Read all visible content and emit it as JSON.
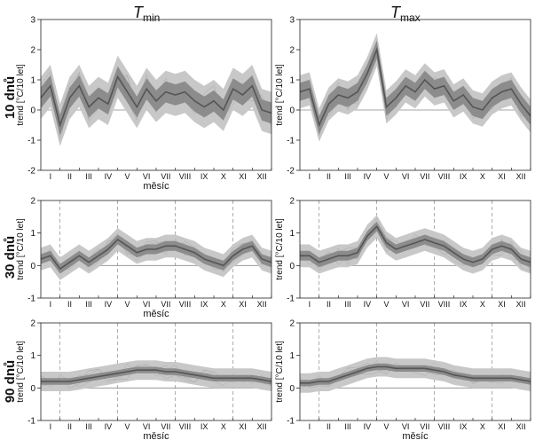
{
  "figure": {
    "col_titles": [
      {
        "main": "T",
        "sub": "min"
      },
      {
        "main": "T",
        "sub": "max"
      }
    ],
    "row_labels": [
      "10 dnů",
      "30 dnů",
      "90 dnů"
    ]
  },
  "colors": {
    "band_outer": "#c8c8c8",
    "band_inner": "#8c8c8c",
    "median": "#555555",
    "thin_lines": "#aaaaaa",
    "zero_line": "#888888"
  },
  "chart_data": [
    {
      "type": "line",
      "panel": "10 dnů / T min",
      "xlabel": "měsíc",
      "ylabel": "trend [°C/10 let]",
      "ylim": [
        -2,
        3
      ],
      "yticks": [
        -2,
        -1,
        0,
        1,
        2,
        3
      ],
      "months": [
        "I",
        "II",
        "III",
        "IV",
        "V",
        "VI",
        "VII",
        "VIII",
        "IX",
        "X",
        "XI",
        "XII"
      ],
      "x": [
        0,
        0.5,
        1,
        1.5,
        2,
        2.5,
        3,
        3.5,
        4,
        4.5,
        5,
        5.5,
        6,
        6.5,
        7,
        7.5,
        8,
        8.5,
        9,
        9.5,
        10,
        10.5,
        11,
        11.5,
        12
      ],
      "median": [
        0.4,
        0.8,
        -0.5,
        0.4,
        0.8,
        0.1,
        0.4,
        0.2,
        1.1,
        0.6,
        0.1,
        0.7,
        0.3,
        0.6,
        0.5,
        0.6,
        0.3,
        0.1,
        0.3,
        0.0,
        0.7,
        0.5,
        0.8,
        0.0,
        -0.1
      ],
      "band_halfwidth": 0.35,
      "outer_halfwidth": 0.7,
      "dashed_months": []
    },
    {
      "type": "line",
      "panel": "10 dnů / T max",
      "xlabel": "",
      "ylabel": "trend [°C/10 let]",
      "ylim": [
        -2,
        3
      ],
      "yticks": [
        -2,
        -1,
        0,
        1,
        2,
        3
      ],
      "months": [
        "I",
        "II",
        "III",
        "IV",
        "V",
        "VI",
        "VII",
        "VIII",
        "IX",
        "X",
        "XI",
        "XII"
      ],
      "x": [
        0,
        0.5,
        1,
        1.5,
        2,
        2.5,
        3,
        3.5,
        4,
        4.5,
        5,
        5.5,
        6,
        6.5,
        7,
        7.5,
        8,
        8.5,
        9,
        9.5,
        10,
        10.5,
        11,
        11.5,
        12
      ],
      "median": [
        0.6,
        0.7,
        -0.5,
        0.2,
        0.5,
        0.4,
        0.6,
        1.2,
        2.0,
        0.1,
        0.4,
        0.8,
        0.6,
        1.0,
        0.7,
        0.8,
        0.3,
        0.5,
        0.1,
        0.0,
        0.4,
        0.6,
        0.7,
        0.2,
        -0.2
      ],
      "band_halfwidth": 0.3,
      "outer_halfwidth": 0.55,
      "dashed_months": []
    },
    {
      "type": "line",
      "panel": "30 dnů / T min",
      "xlabel": "měsíc",
      "ylabel": "trend [°C/10 let]",
      "ylim": [
        -1,
        2
      ],
      "yticks": [
        -1,
        0,
        1,
        2
      ],
      "months": [
        "I",
        "II",
        "III",
        "IV",
        "V",
        "VI",
        "VII",
        "VIII",
        "IX",
        "X",
        "XI",
        "XII"
      ],
      "x": [
        0,
        0.5,
        1,
        1.5,
        2,
        2.5,
        3,
        3.5,
        4,
        4.5,
        5,
        5.5,
        6,
        6.5,
        7,
        7.5,
        8,
        8.5,
        9,
        9.5,
        10,
        10.5,
        11,
        11.5,
        12
      ],
      "median": [
        0.2,
        0.3,
        -0.1,
        0.1,
        0.3,
        0.1,
        0.3,
        0.5,
        0.8,
        0.6,
        0.4,
        0.5,
        0.5,
        0.6,
        0.6,
        0.5,
        0.4,
        0.2,
        0.1,
        0.0,
        0.3,
        0.5,
        0.6,
        0.2,
        0.1
      ],
      "band_halfwidth": 0.15,
      "outer_halfwidth": 0.35,
      "dashed_months": [
        1,
        4,
        7,
        10
      ]
    },
    {
      "type": "line",
      "panel": "30 dnů / T max",
      "xlabel": "",
      "ylabel": "trend [°C/10 let]",
      "ylim": [
        -1,
        2
      ],
      "yticks": [
        -1,
        0,
        1,
        2
      ],
      "months": [
        "I",
        "II",
        "III",
        "IV",
        "V",
        "VI",
        "VII",
        "VIII",
        "IX",
        "X",
        "XI",
        "XII"
      ],
      "x": [
        0,
        0.5,
        1,
        1.5,
        2,
        2.5,
        3,
        3.5,
        4,
        4.5,
        5,
        5.5,
        6,
        6.5,
        7,
        7.5,
        8,
        8.5,
        9,
        9.5,
        10,
        10.5,
        11,
        11.5,
        12
      ],
      "median": [
        0.3,
        0.3,
        0.1,
        0.2,
        0.3,
        0.3,
        0.4,
        0.9,
        1.2,
        0.7,
        0.5,
        0.6,
        0.7,
        0.8,
        0.7,
        0.6,
        0.4,
        0.2,
        0.1,
        0.2,
        0.5,
        0.6,
        0.5,
        0.2,
        0.1
      ],
      "band_halfwidth": 0.15,
      "outer_halfwidth": 0.35,
      "dashed_months": [
        1,
        4,
        7,
        10
      ]
    },
    {
      "type": "line",
      "panel": "90 dnů / T min",
      "xlabel": "měsíc",
      "ylabel": "trend [°C/10 let]",
      "ylim": [
        -1,
        2
      ],
      "yticks": [
        -1,
        0,
        1,
        2
      ],
      "months": [
        "I",
        "II",
        "III",
        "IV",
        "V",
        "VI",
        "VII",
        "VIII",
        "IX",
        "X",
        "XI",
        "XII"
      ],
      "x": [
        0,
        0.5,
        1,
        1.5,
        2,
        2.5,
        3,
        3.5,
        4,
        4.5,
        5,
        5.5,
        6,
        6.5,
        7,
        7.5,
        8,
        8.5,
        9,
        9.5,
        10,
        10.5,
        11,
        11.5,
        12
      ],
      "median": [
        0.2,
        0.2,
        0.2,
        0.2,
        0.25,
        0.3,
        0.35,
        0.4,
        0.45,
        0.5,
        0.55,
        0.55,
        0.55,
        0.5,
        0.5,
        0.45,
        0.4,
        0.35,
        0.3,
        0.3,
        0.3,
        0.3,
        0.3,
        0.25,
        0.2
      ],
      "band_halfwidth": 0.1,
      "outer_halfwidth": 0.3,
      "dashed_months": [
        1,
        4,
        7,
        10
      ]
    },
    {
      "type": "line",
      "panel": "90 dnů / T max",
      "xlabel": "měsíc",
      "ylabel": "trend [°C/10 let]",
      "ylim": [
        -1,
        2
      ],
      "yticks": [
        -1,
        0,
        1,
        2
      ],
      "months": [
        "I",
        "II",
        "III",
        "IV",
        "V",
        "VI",
        "VII",
        "VIII",
        "IX",
        "X",
        "XI",
        "XII"
      ],
      "x": [
        0,
        0.5,
        1,
        1.5,
        2,
        2.5,
        3,
        3.5,
        4,
        4.5,
        5,
        5.5,
        6,
        6.5,
        7,
        7.5,
        8,
        8.5,
        9,
        9.5,
        10,
        10.5,
        11,
        11.5,
        12
      ],
      "median": [
        0.15,
        0.15,
        0.2,
        0.2,
        0.3,
        0.4,
        0.5,
        0.6,
        0.65,
        0.65,
        0.6,
        0.6,
        0.6,
        0.6,
        0.55,
        0.5,
        0.4,
        0.35,
        0.3,
        0.3,
        0.3,
        0.3,
        0.3,
        0.25,
        0.2
      ],
      "band_halfwidth": 0.1,
      "outer_halfwidth": 0.3,
      "dashed_months": [
        1,
        4,
        7,
        10
      ]
    }
  ]
}
